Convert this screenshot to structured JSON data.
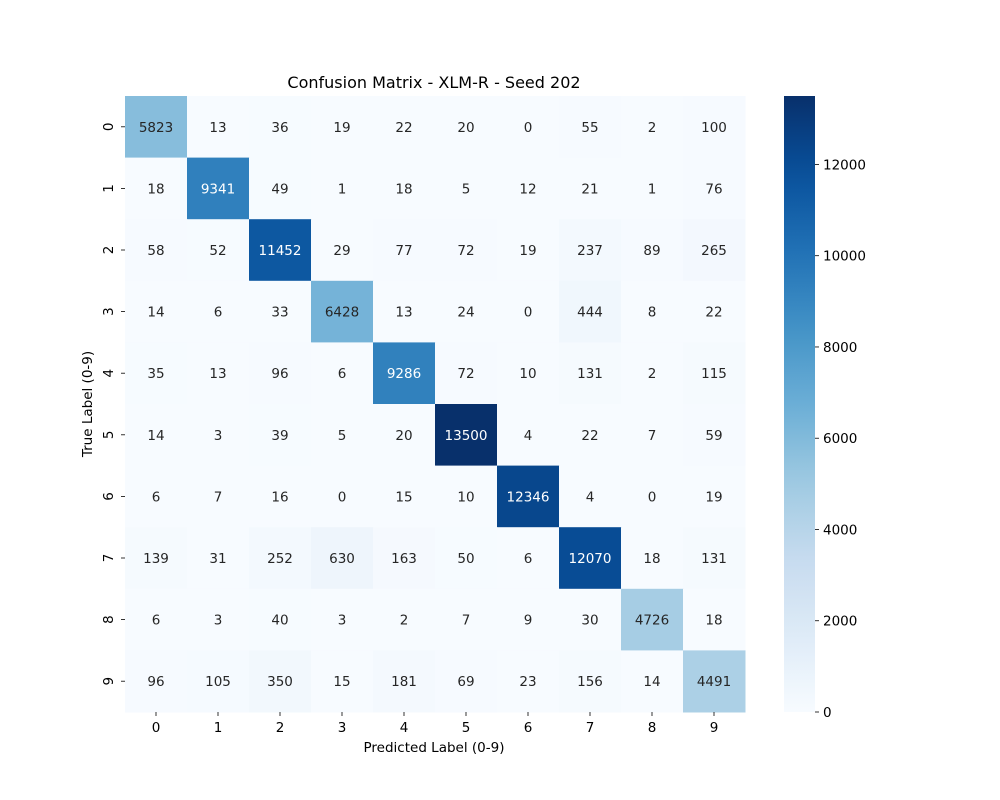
{
  "chart_data": {
    "type": "heatmap",
    "title": "Confusion Matrix - XLM-R - Seed 202",
    "xlabel": "Predicted Label (0-9)",
    "ylabel": "True Label (0-9)",
    "x_categories": [
      "0",
      "1",
      "2",
      "3",
      "4",
      "5",
      "6",
      "7",
      "8",
      "9"
    ],
    "y_categories": [
      "0",
      "1",
      "2",
      "3",
      "4",
      "5",
      "6",
      "7",
      "8",
      "9"
    ],
    "matrix": [
      [
        5823,
        13,
        36,
        19,
        22,
        20,
        0,
        55,
        2,
        100
      ],
      [
        18,
        9341,
        49,
        1,
        18,
        5,
        12,
        21,
        1,
        76
      ],
      [
        58,
        52,
        11452,
        29,
        77,
        72,
        19,
        237,
        89,
        265
      ],
      [
        14,
        6,
        33,
        6428,
        13,
        24,
        0,
        444,
        8,
        22
      ],
      [
        35,
        13,
        96,
        6,
        9286,
        72,
        10,
        131,
        2,
        115
      ],
      [
        14,
        3,
        39,
        5,
        20,
        13500,
        4,
        22,
        7,
        59
      ],
      [
        6,
        7,
        16,
        0,
        15,
        10,
        12346,
        4,
        0,
        19
      ],
      [
        139,
        31,
        252,
        630,
        163,
        50,
        6,
        12070,
        18,
        131
      ],
      [
        6,
        3,
        40,
        3,
        2,
        7,
        9,
        30,
        4726,
        18
      ],
      [
        96,
        105,
        350,
        15,
        181,
        69,
        23,
        156,
        14,
        4491
      ]
    ],
    "colormap": "Blues",
    "vmin": 0,
    "vmax": 13500,
    "colorbar_ticks": [
      "0",
      "2000",
      "4000",
      "6000",
      "8000",
      "10000",
      "12000"
    ],
    "colorbar_tick_values": [
      0,
      2000,
      4000,
      6000,
      8000,
      10000,
      12000
    ]
  }
}
